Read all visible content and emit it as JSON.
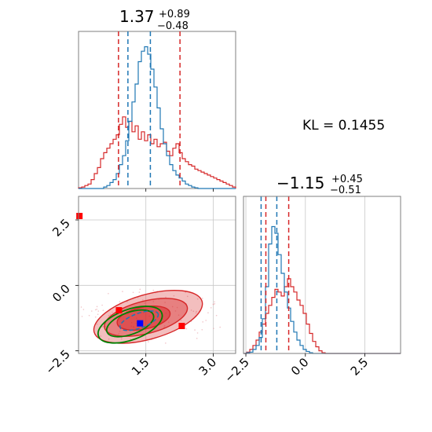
{
  "kl_text": "KL = 0.1455",
  "colors": {
    "red": "#d62728",
    "blue": "#1f77b4",
    "green": "#008000",
    "marker_red": "#ff0000",
    "marker_blue": "#0000ff"
  },
  "chart_data": [
    {
      "type": "histogram",
      "panel": "marginal-top",
      "title_value": "1.37",
      "title_plus": "+0.89",
      "title_minus": "−0.48",
      "xlim": [
        0.0,
        3.5
      ],
      "xticks": [
        1.5,
        3.0
      ],
      "series": [
        {
          "color": "red",
          "bins": [
            0.0,
            3.5
          ],
          "heights": [
            0.005,
            0.01,
            0.02,
            0.03,
            0.06,
            0.1,
            0.14,
            0.2,
            0.24,
            0.27,
            0.3,
            0.33,
            0.36,
            0.43,
            0.48,
            0.41,
            0.45,
            0.38,
            0.42,
            0.33,
            0.38,
            0.32,
            0.36,
            0.3,
            0.33,
            0.28,
            0.3,
            0.31,
            0.25,
            0.22,
            0.27,
            0.3,
            0.24,
            0.2,
            0.18,
            0.16,
            0.15,
            0.13,
            0.12,
            0.11,
            0.1,
            0.09,
            0.08,
            0.07,
            0.06,
            0.05,
            0.04,
            0.03,
            0.02,
            0.01
          ]
        },
        {
          "color": "blue",
          "bins": [
            0.0,
            3.5
          ],
          "heights": [
            0,
            0,
            0,
            0,
            0,
            0,
            0,
            0,
            0.01,
            0.02,
            0.04,
            0.06,
            0.1,
            0.16,
            0.22,
            0.32,
            0.45,
            0.58,
            0.7,
            0.85,
            0.92,
            0.95,
            0.9,
            0.8,
            0.68,
            0.54,
            0.4,
            0.3,
            0.22,
            0.16,
            0.12,
            0.09,
            0.07,
            0.05,
            0.03,
            0.02,
            0.01,
            0.005,
            0,
            0,
            0,
            0,
            0,
            0,
            0,
            0,
            0,
            0,
            0,
            0
          ]
        }
      ],
      "quantiles_red": [
        0.89,
        2.26
      ],
      "quantiles_blue": [
        1.1,
        1.6
      ]
    },
    {
      "type": "histogram",
      "panel": "marginal-right",
      "title_value": "−1.15",
      "title_plus": "+0.45",
      "title_minus": "−0.51",
      "xlim": [
        -2.6,
        4.0
      ],
      "xticks": [
        -2.5,
        0.0,
        2.5
      ],
      "series": [
        {
          "color": "red",
          "bins": [
            -2.6,
            4.0
          ],
          "heights": [
            0,
            0.01,
            0.03,
            0.06,
            0.1,
            0.16,
            0.22,
            0.3,
            0.36,
            0.42,
            0.48,
            0.46,
            0.43,
            0.5,
            0.56,
            0.5,
            0.46,
            0.4,
            0.36,
            0.3,
            0.22,
            0.15,
            0.09,
            0.05,
            0.02,
            0.005,
            0,
            0,
            0,
            0,
            0,
            0,
            0,
            0,
            0,
            0,
            0,
            0,
            0,
            0,
            0,
            0,
            0,
            0,
            0,
            0,
            0,
            0,
            0,
            0
          ]
        },
        {
          "color": "blue",
          "bins": [
            -2.6,
            4.0
          ],
          "heights": [
            0,
            0.005,
            0.01,
            0.03,
            0.06,
            0.12,
            0.26,
            0.5,
            0.82,
            0.95,
            0.9,
            0.74,
            0.6,
            0.46,
            0.34,
            0.24,
            0.16,
            0.1,
            0.06,
            0.03,
            0.015,
            0.005,
            0,
            0,
            0,
            0,
            0,
            0,
            0,
            0,
            0,
            0,
            0,
            0,
            0,
            0,
            0,
            0,
            0,
            0,
            0,
            0,
            0,
            0,
            0,
            0,
            0,
            0,
            0,
            0
          ]
        }
      ],
      "quantiles_red": [
        -1.66,
        -0.7
      ],
      "quantiles_blue": [
        -1.86,
        -1.2
      ]
    },
    {
      "type": "contour",
      "panel": "joint",
      "xlim": [
        0.0,
        3.5
      ],
      "ylim": [
        -2.6,
        3.4
      ],
      "xticks": [
        1.5,
        3.0
      ],
      "yticks": [
        -2.5,
        0.0,
        2.5
      ],
      "red_levels": [
        {
          "cx": 1.55,
          "cy": -1.2,
          "rx": 1.25,
          "ry": 0.85,
          "rot": 0.28,
          "alpha": 0.55
        },
        {
          "cx": 1.5,
          "cy": -1.22,
          "rx": 0.95,
          "ry": 0.62,
          "rot": 0.25,
          "alpha": 0.75
        },
        {
          "cx": 1.45,
          "cy": -1.25,
          "rx": 0.6,
          "ry": 0.42,
          "rot": 0.2,
          "alpha": 0.95
        }
      ],
      "green_levels": [
        {
          "cx": 1.15,
          "cy": -1.5,
          "rx": 0.75,
          "ry": 0.58,
          "rot": 0.35
        },
        {
          "cx": 1.15,
          "cy": -1.45,
          "rx": 0.55,
          "ry": 0.42,
          "rot": 0.35
        }
      ],
      "blue_levels": [
        {
          "cx": 1.35,
          "cy": -1.35,
          "rx": 0.45,
          "ry": 0.28,
          "rot": 0.35
        }
      ],
      "markers": [
        {
          "x": 0.02,
          "y": 2.65,
          "color": "marker_red"
        },
        {
          "x": 1.37,
          "y": -1.45,
          "color": "marker_blue"
        },
        {
          "x": 2.3,
          "y": -1.55,
          "color": "marker_red"
        },
        {
          "x": 0.9,
          "y": -0.95,
          "color": "marker_red"
        }
      ]
    }
  ]
}
